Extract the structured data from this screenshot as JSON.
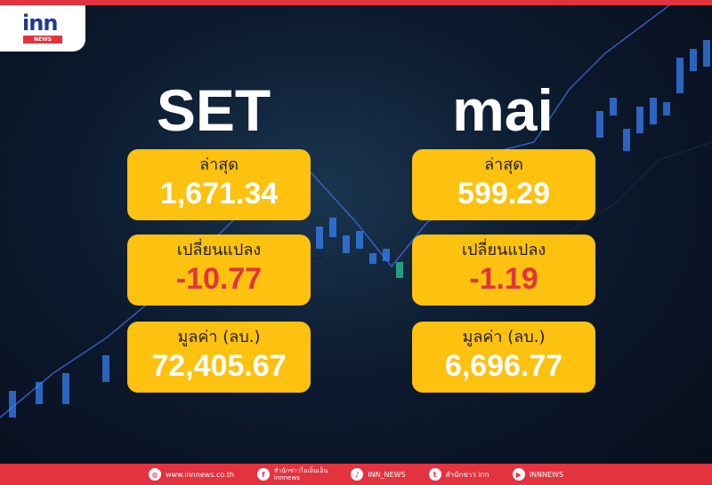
{
  "logo": {
    "brand": "inn",
    "tag": "NEWS"
  },
  "set": {
    "title": "SET",
    "latest_label": "ล่าสุด",
    "latest": "1,671.34",
    "change_label": "เปลี่ยนแปลง",
    "change": "-10.77",
    "value_label": "มูลค่า (ลบ.)",
    "value": "72,405.67"
  },
  "mai": {
    "title": "mai",
    "latest_label": "ล่าสุด",
    "latest": "599.29",
    "change_label": "เปลี่ยนแปลง",
    "change": "-1.19",
    "value_label": "มูลค่า (ลบ.)",
    "value": "6,696.77"
  },
  "footer": {
    "website": "www.innnews.co.th",
    "facebook_line1": "สำนักข่าวไอเอ็นเอ็น",
    "facebook_line2": "innnews",
    "tiktok": "INN_NEWS",
    "twitter": "สำนักข่าว inn",
    "youtube": "INNNEWS"
  },
  "colors": {
    "accent": "#e2333f",
    "card": "#fdc10f",
    "negative": "#e2333f"
  }
}
